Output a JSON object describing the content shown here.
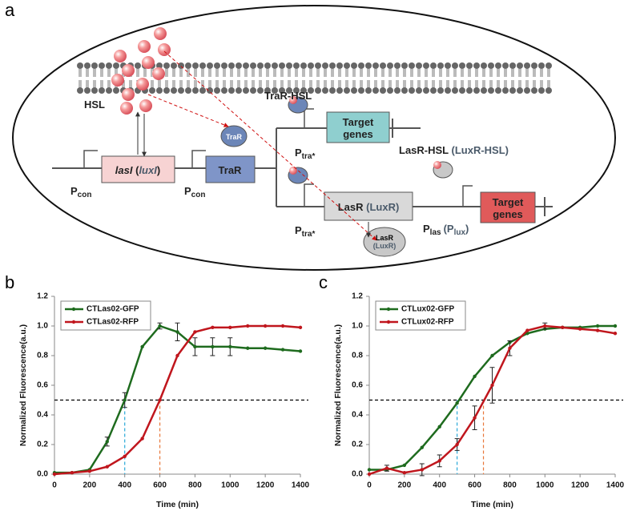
{
  "diagram": {
    "label": "a",
    "hsl": "HSL",
    "trar_hsl": "TraR-HSL",
    "lasr_hsl": [
      "LasR-HSL",
      "(LuxR-HSL)"
    ],
    "pcon": [
      "P",
      "con"
    ],
    "ptra": [
      "P",
      "tra*"
    ],
    "plas_plux": [
      "P",
      "las",
      "(P",
      "lux",
      ")"
    ],
    "lasi_luxi": [
      "lasI",
      " (",
      "luxI",
      ")"
    ],
    "trar_gene": "TraR",
    "lasr_gene": [
      "LasR",
      "(LuxR)"
    ],
    "target": [
      "Target",
      "genes"
    ],
    "trar_protein": "TraR",
    "lasr_protein": [
      "LasR",
      "(LuxR)"
    ]
  },
  "chart_data": [
    {
      "type": "line",
      "panel_label": "b",
      "x_label": "Time (min)",
      "y_label": "Normalized Fluorescence(a.u.)",
      "x": [
        0,
        100,
        200,
        300,
        400,
        500,
        600,
        700,
        800,
        900,
        1000,
        1100,
        1200,
        1300,
        1400
      ],
      "series": [
        {
          "name": "CTLas02-GFP",
          "color": "#1e6b1e",
          "values": [
            0.01,
            0.01,
            0.03,
            0.22,
            0.5,
            0.86,
            1.0,
            0.96,
            0.86,
            0.86,
            0.86,
            0.85,
            0.85,
            0.84,
            0.83
          ],
          "errors": [
            null,
            null,
            null,
            0.03,
            0.05,
            null,
            0.02,
            0.06,
            0.06,
            0.06,
            0.06,
            null,
            null,
            null,
            null
          ]
        },
        {
          "name": "CTLas02-RFP",
          "color": "#c0161d",
          "values": [
            0.0,
            0.01,
            0.02,
            0.05,
            0.12,
            0.24,
            0.5,
            0.8,
            0.96,
            0.99,
            0.99,
            1.0,
            1.0,
            1.0,
            0.99
          ]
        }
      ],
      "ref_lines": [
        {
          "axis": "y",
          "value": 0.5,
          "color": "#000000"
        },
        {
          "axis": "x",
          "value": 400,
          "color": "#29a8d8"
        },
        {
          "axis": "x",
          "value": 600,
          "color": "#e8773a"
        }
      ],
      "legend": "upper left",
      "xlim": [
        0,
        1400
      ],
      "xticks": [
        0,
        200,
        400,
        600,
        800,
        1000,
        1200,
        1400
      ],
      "ylim": [
        0,
        1.2
      ],
      "yticks": [
        {
          "value": 0,
          "label": "0.0"
        },
        {
          "value": 0.2,
          "label": "0.2"
        },
        {
          "value": 0.4,
          "label": "0.4"
        },
        {
          "value": 0.6,
          "label": "0.6"
        },
        {
          "value": 0.8,
          "label": "0.8"
        },
        {
          "value": 1,
          "label": "1.0"
        },
        {
          "value": 1.2,
          "label": "1.2"
        }
      ]
    },
    {
      "type": "line",
      "panel_label": "c",
      "x_label": "Time (min)",
      "y_label": "Normalized Fluorescence(a.u.)",
      "x": [
        0,
        100,
        200,
        300,
        400,
        500,
        600,
        700,
        800,
        900,
        1000,
        1100,
        1200,
        1300,
        1400
      ],
      "series": [
        {
          "name": "CTLux02-GFP",
          "color": "#1e6b1e",
          "values": [
            0.03,
            0.03,
            0.06,
            0.18,
            0.32,
            0.48,
            0.66,
            0.8,
            0.89,
            0.95,
            0.98,
            0.99,
            0.99,
            1.0,
            1.0
          ]
        },
        {
          "name": "CTLux02-RFP",
          "color": "#c0161d",
          "values": [
            0.0,
            0.04,
            0.01,
            0.03,
            0.09,
            0.2,
            0.38,
            0.6,
            0.85,
            0.97,
            1.0,
            0.99,
            0.98,
            0.97,
            0.95
          ],
          "errors": [
            null,
            0.02,
            null,
            0.04,
            0.04,
            0.04,
            0.08,
            0.12,
            0.05,
            null,
            0.02,
            null,
            null,
            null,
            null
          ]
        }
      ],
      "ref_lines": [
        {
          "axis": "y",
          "value": 0.5,
          "color": "#000000"
        },
        {
          "axis": "x",
          "value": 500,
          "color": "#29a8d8"
        },
        {
          "axis": "x",
          "value": 650,
          "color": "#e8773a"
        }
      ],
      "legend": "upper left",
      "xlim": [
        0,
        1400
      ],
      "xticks": [
        0,
        200,
        400,
        600,
        800,
        1000,
        1200,
        1400
      ],
      "ylim": [
        0,
        1.2
      ],
      "yticks": [
        {
          "value": 0,
          "label": "0.0"
        },
        {
          "value": 0.2,
          "label": "0.2"
        },
        {
          "value": 0.4,
          "label": "0.4"
        },
        {
          "value": 0.6,
          "label": "0.6"
        },
        {
          "value": 0.8,
          "label": "0.8"
        },
        {
          "value": 1,
          "label": "1.0"
        },
        {
          "value": 1.2,
          "label": "1.2"
        }
      ]
    }
  ]
}
